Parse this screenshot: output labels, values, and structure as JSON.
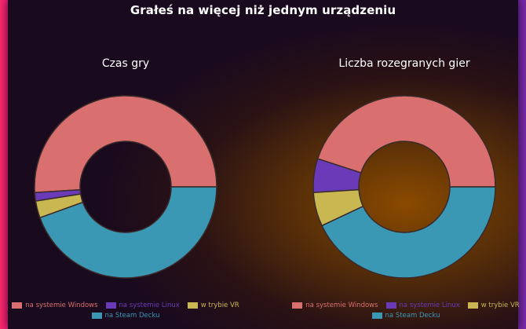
{
  "title": "Grałeś na więcej niż jednym urządzeniu",
  "colors": {
    "windows": "#d96f6f",
    "linux": "#6a3ab8",
    "vr": "#c9b752",
    "deck": "#3a98b4"
  },
  "chart_data": [
    {
      "type": "pie",
      "title": "Czas gry",
      "categories": [
        "na systemie Windows",
        "na systemie Linux",
        "w trybie VR",
        "na Steam Decku"
      ],
      "values": [
        51,
        1.5,
        3,
        44.5
      ],
      "legend": "bottom"
    },
    {
      "type": "pie",
      "title": "Liczba rozegranych gier",
      "categories": [
        "na systemie Windows",
        "na systemie Linux",
        "w trybie VR",
        "na Steam Decku"
      ],
      "values": [
        45,
        6,
        6,
        43
      ],
      "legend": "bottom"
    }
  ]
}
